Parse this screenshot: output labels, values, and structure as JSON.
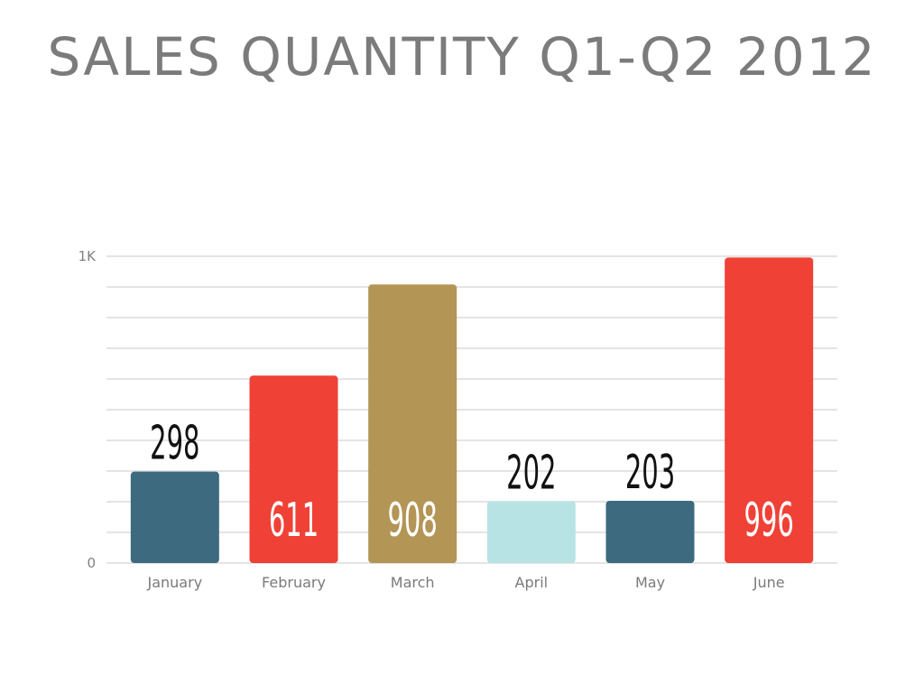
{
  "title": "SALES QUANTITY Q1-Q2 2012",
  "chart_data": {
    "type": "bar",
    "title": "SALES QUANTITY Q1-Q2 2012",
    "categories": [
      "January",
      "February",
      "March",
      "April",
      "May",
      "June"
    ],
    "values": [
      298,
      611,
      908,
      202,
      203,
      996
    ],
    "data_labels": [
      "298",
      "611",
      "908",
      "202",
      "203",
      "996"
    ],
    "bar_colors": [
      "#3e6a80",
      "#ef4136",
      "#b39556",
      "#b8e3e4",
      "#3e6a80",
      "#ef4136"
    ],
    "label_colors": [
      "#111111",
      "#ffffff",
      "#ffffff",
      "#111111",
      "#111111",
      "#ffffff"
    ],
    "label_inside": [
      false,
      true,
      true,
      false,
      false,
      true
    ],
    "ylim": [
      0,
      1000
    ],
    "yticks": [
      {
        "value": 0,
        "label": "0"
      },
      {
        "value": 1000,
        "label": "1K"
      }
    ],
    "grid": true,
    "xlabel": "",
    "ylabel": ""
  }
}
